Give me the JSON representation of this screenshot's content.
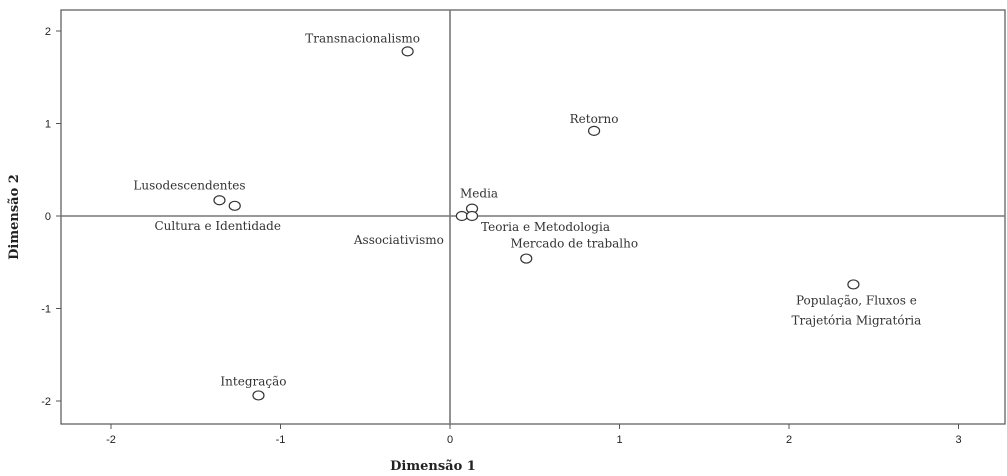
{
  "chart_data": {
    "type": "scatter",
    "title": "",
    "xlabel": "Dimensão 1",
    "ylabel": "Dimensão 2",
    "xlim": [
      -2.3,
      3.3
    ],
    "ylim": [
      -2.25,
      2.2
    ],
    "xticks": [
      "-2",
      "-1",
      "0",
      "1",
      "2",
      "3"
    ],
    "yticks": [
      "2",
      "1",
      "0",
      "-1",
      "-2"
    ],
    "grid": false,
    "reference_lines": {
      "x": 0,
      "y": 0
    },
    "colors": {
      "frame": "#555555",
      "reference_line": "#777777",
      "marker": "#333333",
      "text": "#333333"
    },
    "points": [
      {
        "x": -0.25,
        "y": 1.78,
        "label": "Transnacionalismo"
      },
      {
        "x": 0.85,
        "y": 0.92,
        "label": "Retorno"
      },
      {
        "x": -1.36,
        "y": 0.17,
        "label": "Lusodescendentes"
      },
      {
        "x": -1.27,
        "y": 0.11,
        "label": "Cultura e Identidade"
      },
      {
        "x": 0.13,
        "y": 0.08,
        "label": "Media"
      },
      {
        "x": 0.07,
        "y": 0.0,
        "label": "Associativismo"
      },
      {
        "x": 0.13,
        "y": 0.0,
        "label": "Teoria e Metodologia"
      },
      {
        "x": 0.45,
        "y": -0.46,
        "label": "Mercado de trabalho"
      },
      {
        "x": 2.38,
        "y": -0.74,
        "label": [
          "População, Fluxos e",
          "Trajetória Migratória"
        ]
      },
      {
        "x": -1.13,
        "y": -1.94,
        "label": "Integração"
      }
    ]
  }
}
